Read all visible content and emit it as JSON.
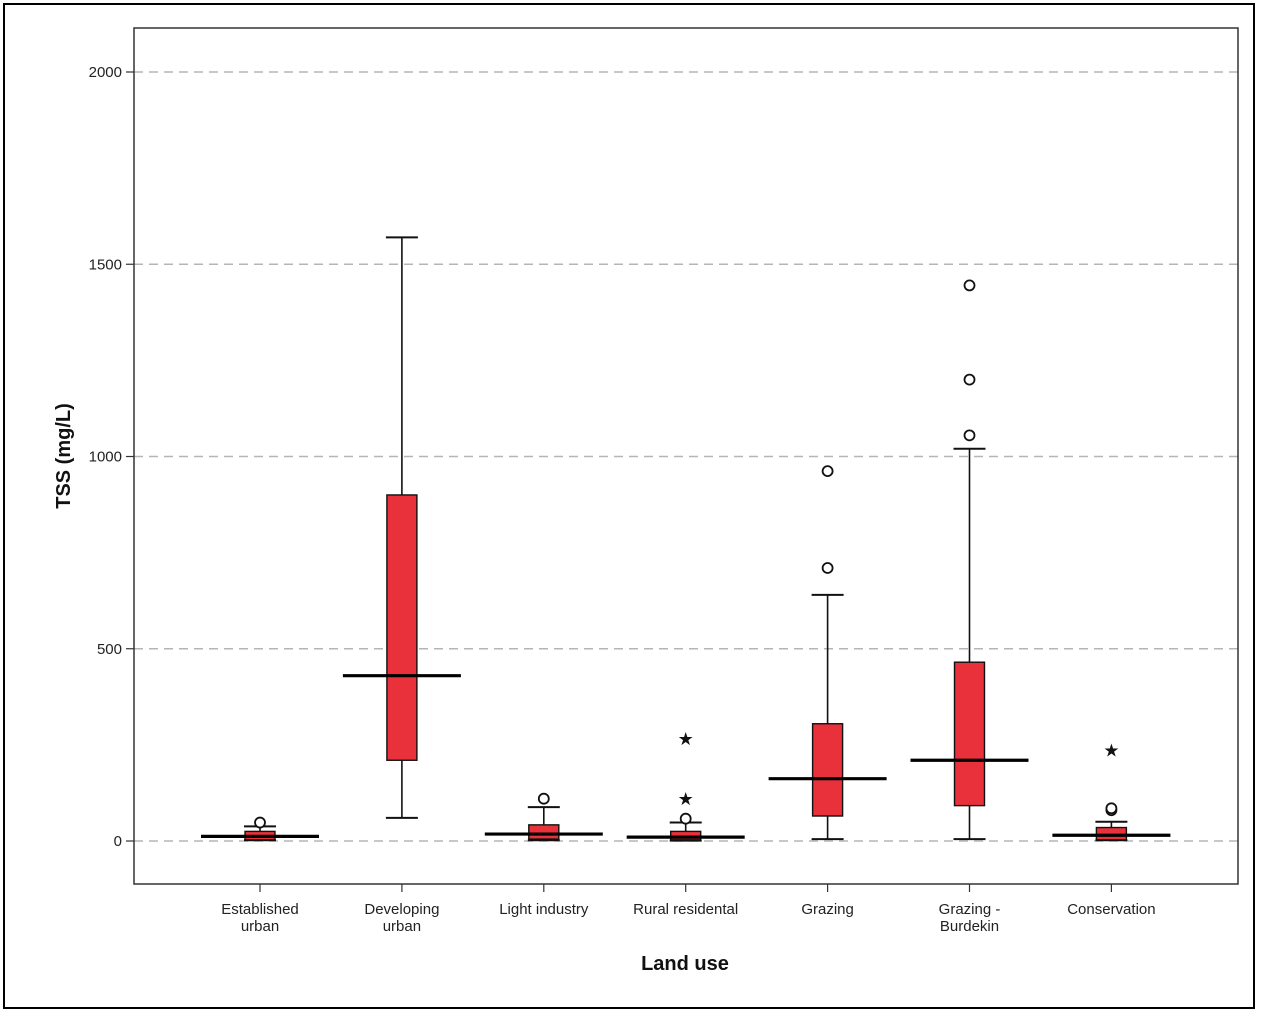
{
  "chart_data": {
    "type": "box",
    "title": "",
    "xlabel": "Land use",
    "ylabel": "TSS (mg/L)",
    "ylim": [
      -110,
      2110
    ],
    "yticks": [
      0,
      500,
      1000,
      1500,
      2000
    ],
    "grid": "horizontal dashed",
    "box_color": "#e8313a",
    "categories": [
      {
        "label": [
          "Established",
          "urban"
        ],
        "q1": 3,
        "median": 12,
        "q3": 25,
        "whisker_low": 2,
        "whisker_high": 38,
        "outliers": [
          48
        ],
        "extremes": []
      },
      {
        "label": [
          "Developing",
          "urban"
        ],
        "q1": 210,
        "median": 430,
        "q3": 900,
        "whisker_low": 60,
        "whisker_high": 1570,
        "outliers": [],
        "extremes": []
      },
      {
        "label": [
          "Light industry"
        ],
        "q1": 5,
        "median": 18,
        "q3": 42,
        "whisker_low": 2,
        "whisker_high": 88,
        "outliers": [
          110
        ],
        "extremes": []
      },
      {
        "label": [
          "Rural residental"
        ],
        "q1": 3,
        "median": 10,
        "q3": 25,
        "whisker_low": 1,
        "whisker_high": 48,
        "outliers": [
          58
        ],
        "extremes": [
          112,
          268
        ]
      },
      {
        "label": [
          "Grazing"
        ],
        "q1": 65,
        "median": 162,
        "q3": 305,
        "whisker_low": 5,
        "whisker_high": 640,
        "outliers": [
          710,
          962
        ],
        "extremes": []
      },
      {
        "label": [
          "Grazing -",
          "Burdekin"
        ],
        "q1": 92,
        "median": 210,
        "q3": 465,
        "whisker_low": 5,
        "whisker_high": 1020,
        "outliers": [
          1055,
          1200,
          1445
        ],
        "extremes": []
      },
      {
        "label": [
          "Conservation"
        ],
        "q1": 3,
        "median": 15,
        "q3": 35,
        "whisker_low": 2,
        "whisker_high": 50,
        "outliers": [
          80,
          85
        ],
        "extremes": [
          238
        ]
      }
    ]
  }
}
